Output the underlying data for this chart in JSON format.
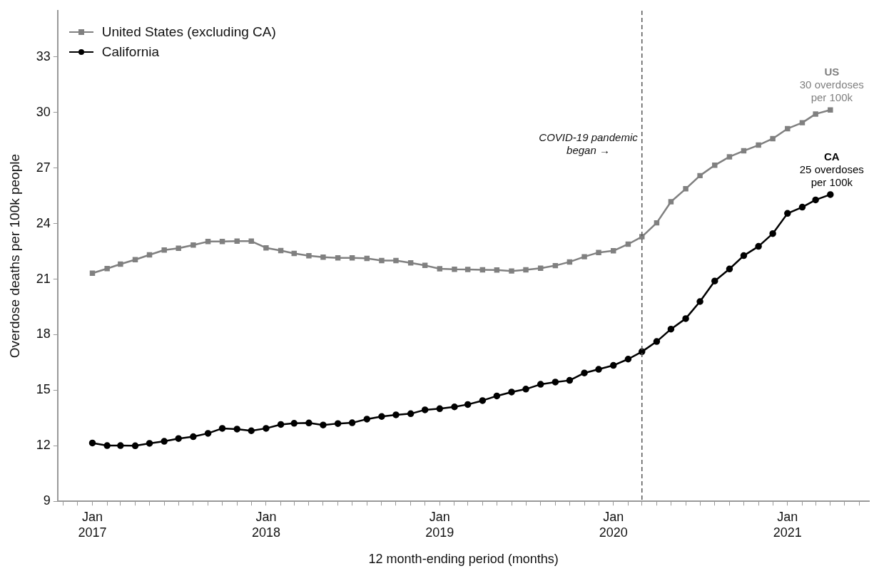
{
  "chart_data": {
    "type": "line",
    "xlabel": "12 month-ending period (months)",
    "ylabel": "Overdose deaths per 100k people",
    "x": [
      "2017-01",
      "2017-02",
      "2017-03",
      "2017-04",
      "2017-05",
      "2017-06",
      "2017-07",
      "2017-08",
      "2017-09",
      "2017-10",
      "2017-11",
      "2017-12",
      "2018-01",
      "2018-02",
      "2018-03",
      "2018-04",
      "2018-05",
      "2018-06",
      "2018-07",
      "2018-08",
      "2018-09",
      "2018-10",
      "2018-11",
      "2018-12",
      "2019-01",
      "2019-02",
      "2019-03",
      "2019-04",
      "2019-05",
      "2019-06",
      "2019-07",
      "2019-08",
      "2019-09",
      "2019-10",
      "2019-11",
      "2019-12",
      "2020-01",
      "2020-02",
      "2020-03",
      "2020-04",
      "2020-05",
      "2020-06",
      "2020-07",
      "2020-08",
      "2020-09",
      "2020-10",
      "2020-11",
      "2020-12",
      "2021-01",
      "2021-02",
      "2021-03",
      "2021-04"
    ],
    "series": [
      {
        "name": "United States (excluding CA)",
        "color": "#808080",
        "marker": "square",
        "values": [
          21.32,
          21.57,
          21.81,
          22.05,
          22.31,
          22.57,
          22.67,
          22.84,
          23.03,
          23.03,
          23.05,
          23.05,
          22.69,
          22.54,
          22.39,
          22.26,
          22.19,
          22.15,
          22.15,
          22.12,
          22.0,
          22.0,
          21.88,
          21.74,
          21.56,
          21.53,
          21.52,
          21.5,
          21.49,
          21.44,
          21.5,
          21.59,
          21.73,
          21.93,
          22.21,
          22.44,
          22.53,
          22.89,
          23.29,
          24.04,
          25.18,
          25.88,
          26.59,
          27.15,
          27.61,
          27.93,
          28.24,
          28.59,
          29.13,
          29.45,
          29.92,
          30.14
        ]
      },
      {
        "name": "California",
        "color": "#000000",
        "marker": "circle",
        "values": [
          12.15,
          12.01,
          12.01,
          12.0,
          12.13,
          12.24,
          12.39,
          12.49,
          12.67,
          12.94,
          12.9,
          12.81,
          12.94,
          13.15,
          13.21,
          13.23,
          13.12,
          13.2,
          13.24,
          13.44,
          13.58,
          13.67,
          13.73,
          13.94,
          14.0,
          14.1,
          14.23,
          14.44,
          14.69,
          14.9,
          15.06,
          15.32,
          15.44,
          15.53,
          15.93,
          16.13,
          16.34,
          16.68,
          17.08,
          17.63,
          18.3,
          18.87,
          19.79,
          20.9,
          21.55,
          22.27,
          22.77,
          23.46,
          24.55,
          24.89,
          25.28,
          25.57
        ]
      }
    ],
    "xlim": [
      "2016-10-20",
      "2021-06-22"
    ],
    "xticks": [
      {
        "value": "2016-11",
        "label": null
      },
      {
        "value": "2016-12",
        "label": null
      },
      {
        "value": "2017-01",
        "label": "Jan 2017"
      },
      {
        "value": "2017-02",
        "label": null
      },
      {
        "value": "2017-03",
        "label": null
      },
      {
        "value": "2017-04",
        "label": null
      },
      {
        "value": "2017-05",
        "label": null
      },
      {
        "value": "2017-06",
        "label": null
      },
      {
        "value": "2017-07",
        "label": null
      },
      {
        "value": "2017-08",
        "label": null
      },
      {
        "value": "2017-09",
        "label": null
      },
      {
        "value": "2017-10",
        "label": null
      },
      {
        "value": "2017-11",
        "label": null
      },
      {
        "value": "2017-12",
        "label": null
      },
      {
        "value": "2018-01",
        "label": "Jan 2018"
      },
      {
        "value": "2018-02",
        "label": null
      },
      {
        "value": "2018-03",
        "label": null
      },
      {
        "value": "2018-04",
        "label": null
      },
      {
        "value": "2018-05",
        "label": null
      },
      {
        "value": "2018-06",
        "label": null
      },
      {
        "value": "2018-07",
        "label": null
      },
      {
        "value": "2018-08",
        "label": null
      },
      {
        "value": "2018-09",
        "label": null
      },
      {
        "value": "2018-10",
        "label": null
      },
      {
        "value": "2018-11",
        "label": null
      },
      {
        "value": "2018-12",
        "label": null
      },
      {
        "value": "2019-01",
        "label": "Jan 2019"
      },
      {
        "value": "2019-02",
        "label": null
      },
      {
        "value": "2019-03",
        "label": null
      },
      {
        "value": "2019-04",
        "label": null
      },
      {
        "value": "2019-05",
        "label": null
      },
      {
        "value": "2019-06",
        "label": null
      },
      {
        "value": "2019-07",
        "label": null
      },
      {
        "value": "2019-08",
        "label": null
      },
      {
        "value": "2019-09",
        "label": null
      },
      {
        "value": "2019-10",
        "label": null
      },
      {
        "value": "2019-11",
        "label": null
      },
      {
        "value": "2019-12",
        "label": null
      },
      {
        "value": "2020-01",
        "label": "Jan 2020"
      },
      {
        "value": "2020-02",
        "label": null
      },
      {
        "value": "2020-03",
        "label": null
      },
      {
        "value": "2020-04",
        "label": null
      },
      {
        "value": "2020-05",
        "label": null
      },
      {
        "value": "2020-06",
        "label": null
      },
      {
        "value": "2020-07",
        "label": null
      },
      {
        "value": "2020-08",
        "label": null
      },
      {
        "value": "2020-09",
        "label": null
      },
      {
        "value": "2020-10",
        "label": null
      },
      {
        "value": "2020-11",
        "label": null
      },
      {
        "value": "2020-12",
        "label": null
      },
      {
        "value": "2021-01",
        "label": "Jan 2021"
      },
      {
        "value": "2021-02",
        "label": null
      },
      {
        "value": "2021-03",
        "label": null
      },
      {
        "value": "2021-04",
        "label": null
      },
      {
        "value": "2021-05",
        "label": null
      },
      {
        "value": "2021-06",
        "label": null
      }
    ],
    "ylim": [
      9,
      35.5
    ],
    "yticks": [
      9,
      12,
      15,
      18,
      21,
      24,
      27,
      30,
      33
    ],
    "ref_lines": [
      {
        "axis": "x",
        "value": "2020-03",
        "label": "COVID-19 pandemic\nbegan →",
        "color": "#555555",
        "line_style": "dashed"
      }
    ],
    "annotations": [
      {
        "text": "US\n30 overdoses\nper 100k",
        "x": "2021-04",
        "y": 30.14
      },
      {
        "text": "CA\n25 overdoses\nper 100k",
        "x": "2021-04",
        "y": 25.57
      }
    ],
    "grid": false,
    "legend": "top left",
    "line_style": "solid"
  }
}
